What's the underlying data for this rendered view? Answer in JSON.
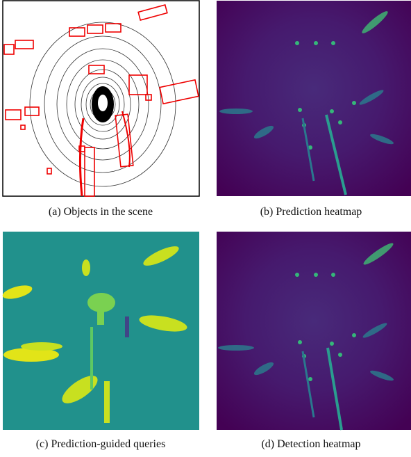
{
  "panels": [
    {
      "caption": "(a) Objects in the scene"
    },
    {
      "caption": "(b) Prediction heatmap"
    },
    {
      "caption": "(c) Prediction-guided queries"
    },
    {
      "caption": "(d) Detection heatmap"
    }
  ]
}
